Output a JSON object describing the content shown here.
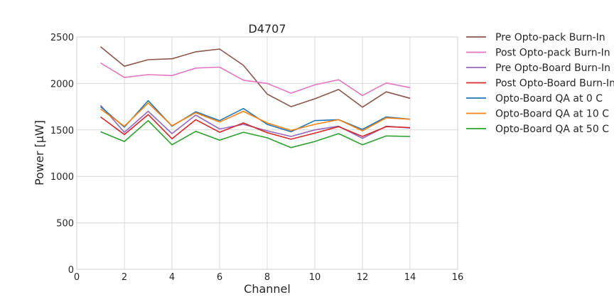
{
  "chart_data": {
    "type": "line",
    "title": "D4707",
    "xlabel": "Channel",
    "ylabel": "Power [μW]",
    "xlim": [
      0,
      16
    ],
    "ylim": [
      0,
      2500
    ],
    "xticks": [
      0,
      2,
      4,
      6,
      8,
      10,
      12,
      14,
      16
    ],
    "yticks": [
      0,
      500,
      1000,
      1500,
      2000,
      2500
    ],
    "grid": true,
    "legend_position": "outside right",
    "x": [
      1,
      2,
      3,
      4,
      5,
      6,
      7,
      8,
      9,
      10,
      11,
      12,
      13,
      14
    ],
    "series": [
      {
        "name": "Pre Opto-pack Burn-In",
        "color": "#8c564b",
        "values": [
          2395,
          2185,
          2255,
          2265,
          2340,
          2370,
          2195,
          1885,
          1750,
          1835,
          1935,
          1745,
          1910,
          1840
        ]
      },
      {
        "name": "Post Opto-pack Burn-In",
        "color": "#e377c2",
        "values": [
          2220,
          2065,
          2095,
          2085,
          2165,
          2175,
          2035,
          2000,
          1895,
          1985,
          2040,
          1870,
          2005,
          1955
        ]
      },
      {
        "name": "Pre Opto-Board Burn-In",
        "color": "#9467bd",
        "values": [
          1765,
          1475,
          1700,
          1460,
          1660,
          1510,
          1560,
          1490,
          1430,
          1500,
          1540,
          1410,
          1540,
          1520
        ]
      },
      {
        "name": "Post Opto-Board Burn-In",
        "color": "#d62728",
        "values": [
          1640,
          1450,
          1665,
          1405,
          1610,
          1475,
          1575,
          1470,
          1400,
          1465,
          1535,
          1430,
          1535,
          1525
        ]
      },
      {
        "name": "Opto-Board QA at 0 C",
        "color": "#1f77b4",
        "values": [
          1750,
          1530,
          1815,
          1540,
          1695,
          1600,
          1730,
          1560,
          1480,
          1600,
          1610,
          1505,
          1640,
          1615
        ]
      },
      {
        "name": "Opto-Board QA at 10 C",
        "color": "#ff7f0e",
        "values": [
          1725,
          1540,
          1790,
          1545,
          1685,
          1585,
          1700,
          1575,
          1495,
          1560,
          1610,
          1490,
          1630,
          1615
        ]
      },
      {
        "name": "Opto-Board QA at 50 C",
        "color": "#2ca02c",
        "values": [
          1480,
          1375,
          1600,
          1340,
          1485,
          1390,
          1475,
          1415,
          1310,
          1375,
          1460,
          1340,
          1435,
          1430
        ]
      }
    ]
  }
}
